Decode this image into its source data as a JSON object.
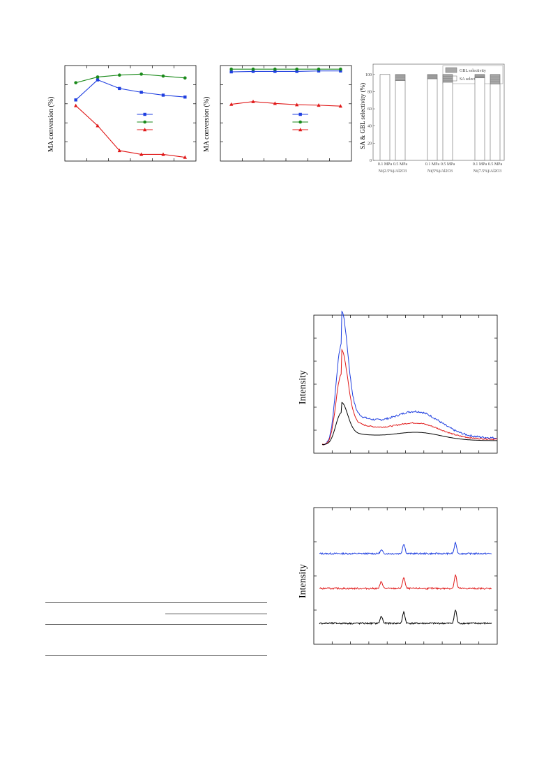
{
  "chart_data": [
    {
      "type": "line",
      "ylabel": "MA conversion (%)",
      "series": [
        {
          "name": "",
          "color": "#1f3fe0",
          "marker": "square",
          "x": [
            1,
            2,
            3,
            4,
            5,
            6
          ],
          "values": [
            61,
            82,
            73,
            69,
            66,
            64
          ]
        },
        {
          "name": "",
          "color": "#1a8a1a",
          "marker": "circle",
          "x": [
            1,
            2,
            3,
            4,
            5,
            6
          ],
          "values": [
            79,
            85,
            87,
            88,
            86,
            84
          ]
        },
        {
          "name": "",
          "color": "#e01818",
          "marker": "triangle",
          "x": [
            1,
            2,
            3,
            4,
            5,
            6
          ],
          "values": [
            55,
            34,
            8,
            4,
            4,
            1
          ]
        }
      ],
      "xlim": [
        0.5,
        6.5
      ],
      "ylim": [
        -3,
        97
      ]
    },
    {
      "type": "line",
      "ylabel": "MA conversion (%)",
      "series": [
        {
          "name": "",
          "color": "#1f3fe0",
          "marker": "square",
          "x": [
            1,
            2,
            3,
            4,
            5,
            6
          ],
          "values": [
            96,
            96.5,
            96.5,
            96.5,
            97,
            97
          ]
        },
        {
          "name": "",
          "color": "#1a8a1a",
          "marker": "circle",
          "x": [
            1,
            2,
            3,
            4,
            5,
            6
          ],
          "values": [
            99,
            99,
            99,
            99,
            99,
            99
          ]
        },
        {
          "name": "",
          "color": "#e01818",
          "marker": "triangle",
          "x": [
            1,
            2,
            3,
            4,
            5,
            6
          ],
          "values": [
            60,
            63,
            61,
            59.5,
            59,
            58
          ]
        }
      ],
      "xlim": [
        0.5,
        6.5
      ],
      "ylim": [
        -3,
        103
      ]
    },
    {
      "type": "bar",
      "ylabel": "SA & GBL selectivity (%)",
      "yticks": [
        "0",
        "20",
        "40",
        "60",
        "80",
        "100"
      ],
      "ylim": [
        0,
        112
      ],
      "legend": [
        "GBL selectivity",
        "SA selectivity"
      ],
      "pressure_labels": [
        "0.1 MPa",
        "0.5 MPa"
      ],
      "groups": [
        {
          "label": "Ni(2.5%)/Al2O3",
          "bars": [
            {
              "sa": 100,
              "gbl": 0
            },
            {
              "sa": 93,
              "gbl": 7
            }
          ]
        },
        {
          "label": "Ni(5%)/Al2O3",
          "bars": [
            {
              "sa": 95,
              "gbl": 5
            },
            {
              "sa": 91,
              "gbl": 9
            }
          ]
        },
        {
          "label": "Ni(7.5%)/Al2O3",
          "bars": [
            {
              "sa": 96,
              "gbl": 4
            },
            {
              "sa": 89,
              "gbl": 11
            }
          ]
        }
      ],
      "colors": {
        "sa": "#ffffff",
        "gbl": "#a8a8a8"
      }
    },
    {
      "type": "line",
      "ylabel": "Intensity",
      "series": [
        {
          "name": "",
          "color": "#1f3fe0",
          "peak": 1.0,
          "shoulder": 0.22,
          "tail": 0.06,
          "noise": 0.01
        },
        {
          "name": "",
          "color": "#e01818",
          "peak": 0.7,
          "shoulder": 0.13,
          "tail": 0.05,
          "noise": 0.006
        },
        {
          "name": "",
          "color": "#000000",
          "peak": 0.3,
          "shoulder": 0.07,
          "tail": 0.04,
          "noise": 0.0
        }
      ]
    },
    {
      "type": "line",
      "ylabel": "Intensity",
      "series": [
        {
          "name": "",
          "color": "#1f3fe0",
          "offset": 2.0,
          "peaks": [
            [
              0.36,
              0.1
            ],
            [
              0.49,
              0.28
            ],
            [
              0.79,
              0.3
            ]
          ]
        },
        {
          "name": "",
          "color": "#e01818",
          "offset": 1.0,
          "peaks": [
            [
              0.36,
              0.2
            ],
            [
              0.49,
              0.32
            ],
            [
              0.79,
              0.38
            ]
          ]
        },
        {
          "name": "",
          "color": "#000000",
          "offset": 0.0,
          "peaks": [
            [
              0.36,
              0.2
            ],
            [
              0.49,
              0.32
            ],
            [
              0.79,
              0.38
            ]
          ]
        }
      ]
    }
  ]
}
